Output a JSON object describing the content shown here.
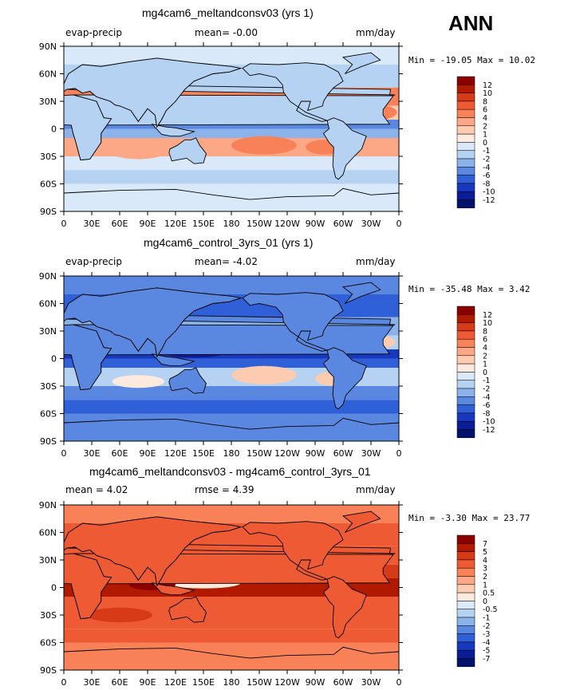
{
  "season": "ANN",
  "panels": [
    {
      "title": "mg4cam6_meltandconsv03 (yrs 1)",
      "left_label": "evap-precip",
      "center_label": "mean=   -0.00",
      "right_label": "mm/day",
      "minmax": "Min = -19.05 Max =  10.02",
      "colorbar_labels": [
        "12",
        "10",
        "8",
        "6",
        "4",
        "2",
        "1",
        "0",
        "-1",
        "-2",
        "-4",
        "-6",
        "-8",
        "-10",
        "-12"
      ],
      "colors": [
        "#8b0000",
        "#b21a00",
        "#d63a16",
        "#ee5a33",
        "#f88158",
        "#fca887",
        "#fdcbb0",
        "#fdeade",
        "#d9e9f9",
        "#b5d2f2",
        "#8bb3ea",
        "#5a88e0",
        "#3060d8",
        "#1838c0",
        "#0a1c98",
        "#00126b"
      ]
    },
    {
      "title": "mg4cam6_control_3yrs_01 (yrs 1)",
      "left_label": "evap-precip",
      "center_label": "mean=   -4.02",
      "right_label": "mm/day",
      "minmax": "Min = -35.48 Max =   3.42",
      "colorbar_labels": [
        "12",
        "10",
        "8",
        "6",
        "4",
        "2",
        "1",
        "0",
        "-1",
        "-2",
        "-4",
        "-6",
        "-8",
        "-10",
        "-12"
      ],
      "colors": [
        "#8b0000",
        "#b21a00",
        "#d63a16",
        "#ee5a33",
        "#f88158",
        "#fca887",
        "#fdcbb0",
        "#fdeade",
        "#d9e9f9",
        "#b5d2f2",
        "#8bb3ea",
        "#5a88e0",
        "#3060d8",
        "#1838c0",
        "#0a1c98",
        "#00126b"
      ]
    },
    {
      "title": "mg4cam6_meltandconsv03 - mg4cam6_control_3yrs_01",
      "left_label": "mean =   4.02",
      "center_label": "rmse =   4.39",
      "right_label": "mm/day",
      "minmax": "Min = -3.30 Max =  23.77",
      "colorbar_labels": [
        "7",
        "5",
        "4",
        "3",
        "2",
        "1",
        "0.5",
        "0",
        "-0.5",
        "-1",
        "-2",
        "-3",
        "-4",
        "-5",
        "-7"
      ],
      "colors": [
        "#8b0000",
        "#b21a00",
        "#d63a16",
        "#ee5a33",
        "#f88158",
        "#fca887",
        "#fdcbb0",
        "#fdeade",
        "#d9e9f9",
        "#b5d2f2",
        "#8bb3ea",
        "#5a88e0",
        "#3060d8",
        "#1838c0",
        "#0a1c98",
        "#00126b"
      ]
    }
  ],
  "chart_data": [
    {
      "type": "heatmap",
      "title": "mg4cam6_meltandconsv03 (yrs 1)",
      "variable": "evap-precip",
      "units": "mm/day",
      "mean": -0.0,
      "min": -19.05,
      "max": 10.02,
      "levels": [
        -12,
        -10,
        -8,
        -6,
        -4,
        -2,
        -1,
        0,
        1,
        2,
        4,
        6,
        8,
        10,
        12
      ],
      "x_ticks": [
        "0",
        "30E",
        "60E",
        "90E",
        "120E",
        "150E",
        "180",
        "150W",
        "120W",
        "90W",
        "60W",
        "30W",
        "0"
      ],
      "y_ticks": [
        "90N",
        "60N",
        "30N",
        "0",
        "30S",
        "60S",
        "90S"
      ],
      "xlim": [
        0,
        360
      ],
      "ylim": [
        -90,
        90
      ]
    },
    {
      "type": "heatmap",
      "title": "mg4cam6_control_3yrs_01 (yrs 1)",
      "variable": "evap-precip",
      "units": "mm/day",
      "mean": -4.02,
      "min": -35.48,
      "max": 3.42,
      "levels": [
        -12,
        -10,
        -8,
        -6,
        -4,
        -2,
        -1,
        0,
        1,
        2,
        4,
        6,
        8,
        10,
        12
      ],
      "x_ticks": [
        "0",
        "30E",
        "60E",
        "90E",
        "120E",
        "150E",
        "180",
        "150W",
        "120W",
        "90W",
        "60W",
        "30W",
        "0"
      ],
      "y_ticks": [
        "90N",
        "60N",
        "30N",
        "0",
        "30S",
        "60S",
        "90S"
      ],
      "xlim": [
        0,
        360
      ],
      "ylim": [
        -90,
        90
      ]
    },
    {
      "type": "heatmap",
      "title": "mg4cam6_meltandconsv03 - mg4cam6_control_3yrs_01",
      "units": "mm/day",
      "mean": 4.02,
      "rmse": 4.39,
      "min": -3.3,
      "max": 23.77,
      "levels": [
        -7,
        -5,
        -4,
        -3,
        -2,
        -1,
        -0.5,
        0,
        0.5,
        1,
        2,
        3,
        4,
        5,
        7
      ],
      "x_ticks": [
        "0",
        "30E",
        "60E",
        "90E",
        "120E",
        "150E",
        "180",
        "150W",
        "120W",
        "90W",
        "60W",
        "30W",
        "0"
      ],
      "y_ticks": [
        "90N",
        "60N",
        "30N",
        "0",
        "30S",
        "60S",
        "90S"
      ],
      "xlim": [
        0,
        360
      ],
      "ylim": [
        -90,
        90
      ]
    }
  ]
}
